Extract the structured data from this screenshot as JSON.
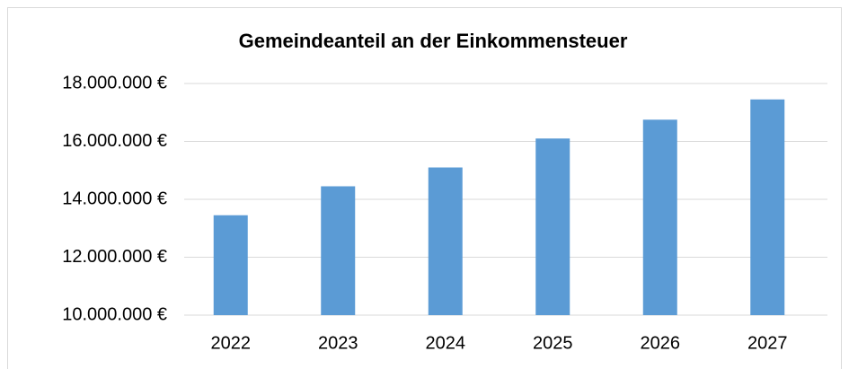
{
  "chart_data": {
    "type": "bar",
    "title": "Gemeindeanteil an der Einkommensteuer",
    "categories": [
      "2022",
      "2023",
      "2024",
      "2025",
      "2026",
      "2027"
    ],
    "values": [
      13450000,
      14450000,
      15100000,
      16100000,
      16750000,
      17450000
    ],
    "color": "#5b9bd5",
    "ylim": [
      10000000,
      18000000
    ],
    "yticks": [
      {
        "value": 10000000,
        "label": "10.000.000 €"
      },
      {
        "value": 12000000,
        "label": "12.000.000 €"
      },
      {
        "value": 14000000,
        "label": "14.000.000 €"
      },
      {
        "value": 16000000,
        "label": "16.000.000 €"
      },
      {
        "value": 18000000,
        "label": "18.000.000 €"
      }
    ],
    "grid": true
  }
}
